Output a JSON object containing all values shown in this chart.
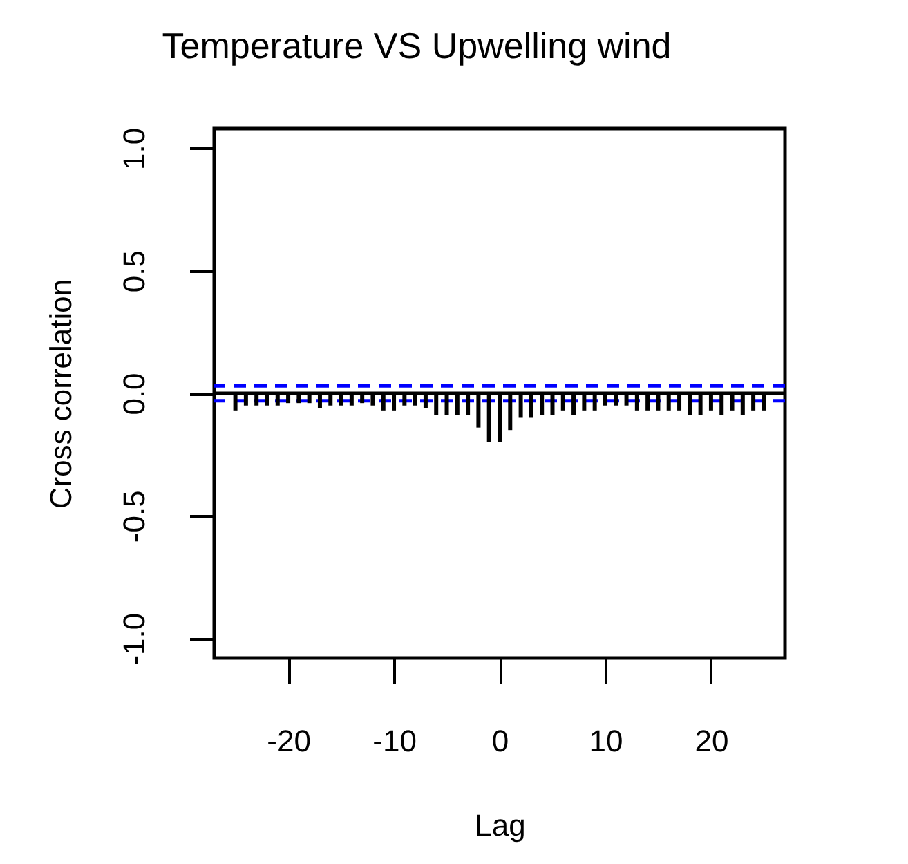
{
  "chart_data": {
    "type": "bar",
    "title": "Temperature VS Upwelling wind",
    "xlabel": "Lag",
    "ylabel": "Cross correlation",
    "x": [
      -25,
      -24,
      -23,
      -22,
      -21,
      -20,
      -19,
      -18,
      -17,
      -16,
      -15,
      -14,
      -13,
      -12,
      -11,
      -10,
      -9,
      -8,
      -7,
      -6,
      -5,
      -4,
      -3,
      -2,
      -1,
      0,
      1,
      2,
      3,
      4,
      5,
      6,
      7,
      8,
      9,
      10,
      11,
      12,
      13,
      14,
      15,
      16,
      17,
      18,
      19,
      20,
      21,
      22,
      23,
      24,
      25
    ],
    "series": [
      {
        "color": "#000000",
        "values": [
          -0.07,
          -0.05,
          -0.05,
          -0.05,
          -0.05,
          -0.04,
          -0.04,
          -0.04,
          -0.06,
          -0.05,
          -0.05,
          -0.05,
          -0.04,
          -0.05,
          -0.07,
          -0.07,
          -0.05,
          -0.05,
          -0.06,
          -0.09,
          -0.09,
          -0.09,
          -0.09,
          -0.14,
          -0.2,
          -0.2,
          -0.15,
          -0.1,
          -0.1,
          -0.09,
          -0.09,
          -0.07,
          -0.09,
          -0.07,
          -0.07,
          -0.05,
          -0.05,
          -0.05,
          -0.07,
          -0.07,
          -0.07,
          -0.07,
          -0.07,
          -0.09,
          -0.09,
          -0.07,
          -0.09,
          -0.07,
          -0.09,
          -0.07,
          -0.07
        ]
      }
    ],
    "xlim": [
      -27,
      27
    ],
    "xticks": [
      -20,
      -10,
      0,
      10,
      20
    ],
    "ylim": [
      -1.08,
      1.08
    ],
    "yticks": [
      {
        "value": -1,
        "label": "-1.0"
      },
      {
        "value": -0.5,
        "label": "-0.5"
      },
      {
        "value": 0,
        "label": "0.0"
      },
      {
        "value": 0.5,
        "label": "0.5"
      },
      {
        "value": 1,
        "label": "1.0"
      }
    ],
    "ref_lines": [
      {
        "axis": "y",
        "value": 0,
        "color": "#000000",
        "line_style": "solid"
      },
      {
        "axis": "y",
        "value": 0.03,
        "color": "#0000ff",
        "line_style": "dashed"
      },
      {
        "axis": "y",
        "value": -0.03,
        "color": "#0000ff",
        "line_style": "dashed"
      }
    ],
    "grid": false
  }
}
